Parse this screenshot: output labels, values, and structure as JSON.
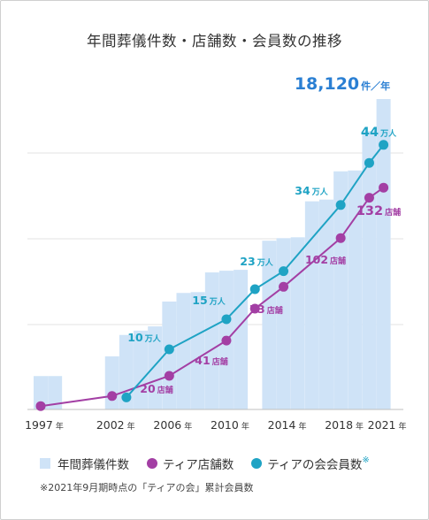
{
  "title": "年間葬儀件数・店舗数・会員数の推移",
  "colors": {
    "bar": "#cfe3f7",
    "stores": "#a33fa4",
    "members": "#1fa3c4",
    "total_label": "#2a7fd3",
    "grid": "#e3e3e3",
    "axis": "#bfbfbf"
  },
  "chart_data": {
    "type": "bar",
    "title": "年間葬儀件数・店舗数・会員数の推移",
    "x_unit": "年",
    "x_tick_labels": [
      "1997",
      "2002",
      "2006",
      "2010",
      "2014",
      "2018",
      "2021"
    ],
    "categories": [
      "1997",
      "1998",
      "1999",
      "2000",
      "2001",
      "2002",
      "2003",
      "2004",
      "2005",
      "2006",
      "2007",
      "2008",
      "2009",
      "2010",
      "2011",
      "2012",
      "2013",
      "2014",
      "2015",
      "2016",
      "2017",
      "2018",
      "2019",
      "2020",
      "2021"
    ],
    "ylim": [
      0,
      18120
    ],
    "grid": true,
    "legend_position": "bottom",
    "series": [
      {
        "name": "年間葬儀件数",
        "kind": "bar",
        "x": [
          "1997",
          "1998",
          "2002",
          "2003",
          "2004",
          "2005",
          "2006",
          "2007",
          "2008",
          "2009",
          "2010",
          "2011",
          "2013",
          "2014",
          "2015",
          "2016",
          "2017",
          "2018",
          "2019",
          "2020",
          "2021"
        ],
        "values": [
          1950,
          1950,
          3100,
          4350,
          4600,
          4850,
          6300,
          6800,
          6850,
          8000,
          8100,
          8150,
          9850,
          10000,
          10050,
          12150,
          12250,
          13900,
          13950,
          16250,
          18120
        ]
      },
      {
        "name": "ティア店舗数",
        "kind": "line",
        "x": [
          "1997",
          "2002",
          "2006",
          "2010",
          "2012",
          "2014",
          "2018",
          "2020",
          "2021"
        ],
        "values": [
          2,
          8,
          20,
          41,
          60,
          73,
          102,
          126,
          132
        ]
      },
      {
        "name": "ティアの会会員数",
        "kind": "line",
        "x": [
          "2003",
          "2006",
          "2010",
          "2012",
          "2014",
          "2018",
          "2020",
          "2021"
        ],
        "values": [
          2,
          10,
          15,
          20,
          23,
          34,
          41,
          44
        ]
      }
    ],
    "annotations": [
      {
        "series": "ティアの会会員数",
        "x": "2006",
        "value": "10",
        "unit": "万人"
      },
      {
        "series": "ティアの会会員数",
        "x": "2010",
        "value": "15",
        "unit": "万人"
      },
      {
        "series": "ティアの会会員数",
        "x": "2014",
        "value": "23",
        "unit": "万人"
      },
      {
        "series": "ティアの会会員数",
        "x": "2018",
        "value": "34",
        "unit": "万人"
      },
      {
        "series": "ティアの会会員数",
        "x": "2021",
        "value": "44",
        "unit": "万人"
      },
      {
        "series": "ティア店舗数",
        "x": "2006",
        "value": "20",
        "unit": "店舗"
      },
      {
        "series": "ティア店舗数",
        "x": "2010",
        "value": "41",
        "unit": "店舗"
      },
      {
        "series": "ティア店舗数",
        "x": "2014",
        "value": "73",
        "unit": "店舗"
      },
      {
        "series": "ティア店舗数",
        "x": "2018",
        "value": "102",
        "unit": "店舗"
      },
      {
        "series": "ティア店舗数",
        "x": "2021",
        "value": "132",
        "unit": "店舗"
      },
      {
        "series": "年間葬儀件数",
        "x": "2021",
        "value": "18,120",
        "unit": "件／年"
      }
    ]
  },
  "legend": [
    {
      "label": "年間葬儀件数",
      "marker": "bar"
    },
    {
      "label": "ティア店舗数",
      "marker": "dot-stores"
    },
    {
      "label": "ティアの会会員数",
      "marker": "dot-members",
      "sup": "※"
    }
  ],
  "footnote": "※2021年9月期時点の「ティアの会」累計会員数"
}
